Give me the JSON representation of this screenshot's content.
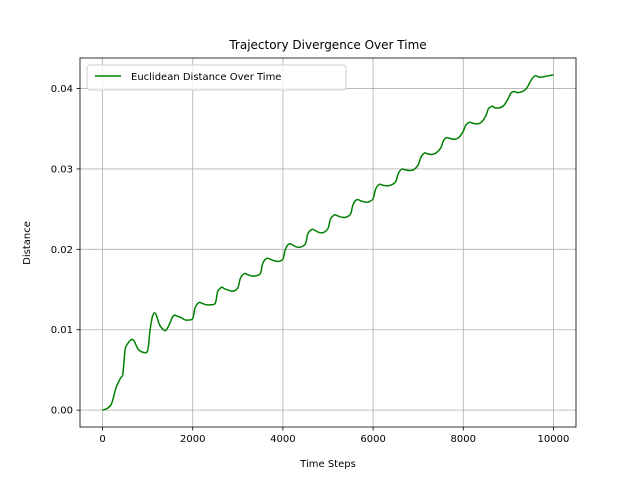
{
  "chart_data": {
    "type": "line",
    "title": "Trajectory Divergence Over Time",
    "xlabel": "Time Steps",
    "ylabel": "Distance",
    "xlim": [
      -500,
      10500
    ],
    "ylim": [
      -0.0021,
      0.0438
    ],
    "xticks": [
      0,
      2000,
      4000,
      6000,
      8000,
      10000
    ],
    "xtick_labels": [
      "0",
      "2000",
      "4000",
      "6000",
      "8000",
      "10000"
    ],
    "yticks": [
      0.0,
      0.01,
      0.02,
      0.03,
      0.04
    ],
    "ytick_labels": [
      "0.00",
      "0.01",
      "0.02",
      "0.03",
      "0.04"
    ],
    "grid": true,
    "legend_position": "top-left",
    "series": [
      {
        "name": "Euclidean Distance Over Time",
        "color": "#008000",
        "x": [
          0,
          100,
          200,
          300,
          400,
          450,
          500,
          550,
          600,
          650,
          700,
          750,
          800,
          900,
          1000,
          1050,
          1100,
          1150,
          1200,
          1250,
          1300,
          1400,
          1500,
          1550,
          1600,
          1650,
          1700,
          1750,
          1800,
          1850,
          1900,
          2000,
          2050,
          2100,
          2150,
          2200,
          2300,
          2400,
          2500,
          2550,
          2600,
          2650,
          2700,
          2800,
          2900,
          3000,
          3050,
          3100,
          3150,
          3200,
          3300,
          3400,
          3500,
          3550,
          3600,
          3650,
          3700,
          3800,
          3900,
          4000,
          4050,
          4100,
          4150,
          4200,
          4300,
          4400,
          4500,
          4550,
          4600,
          4650,
          4700,
          4800,
          4900,
          5000,
          5050,
          5100,
          5150,
          5200,
          5300,
          5400,
          5500,
          5550,
          5600,
          5650,
          5700,
          5800,
          5900,
          6000,
          6050,
          6100,
          6150,
          6200,
          6300,
          6400,
          6500,
          6550,
          6600,
          6650,
          6700,
          6800,
          6900,
          7000,
          7050,
          7100,
          7150,
          7200,
          7300,
          7400,
          7500,
          7550,
          7600,
          7650,
          7700,
          7800,
          7900,
          8000,
          8050,
          8100,
          8150,
          8200,
          8300,
          8400,
          8500,
          8550,
          8600,
          8650,
          8700,
          8800,
          8900,
          9000,
          9050,
          9100,
          9150,
          9200,
          9300,
          9400,
          9500,
          9550,
          9600,
          9650,
          9700,
          9800,
          9900,
          10000
        ],
        "y": [
          0.0,
          0.0002,
          0.0008,
          0.0028,
          0.004,
          0.0045,
          0.0075,
          0.0082,
          0.0086,
          0.0088,
          0.0086,
          0.008,
          0.0075,
          0.0072,
          0.0074,
          0.0098,
          0.0115,
          0.0121,
          0.0117,
          0.0108,
          0.0103,
          0.0099,
          0.0109,
          0.0116,
          0.0118,
          0.0117,
          0.0116,
          0.0115,
          0.0113,
          0.0112,
          0.0112,
          0.0114,
          0.0127,
          0.0132,
          0.0134,
          0.0133,
          0.0131,
          0.0131,
          0.0133,
          0.0147,
          0.0151,
          0.0153,
          0.0151,
          0.0149,
          0.0148,
          0.0152,
          0.0163,
          0.0168,
          0.017,
          0.0169,
          0.0167,
          0.0167,
          0.017,
          0.0182,
          0.0187,
          0.0189,
          0.0188,
          0.0186,
          0.0185,
          0.0188,
          0.0199,
          0.0205,
          0.0207,
          0.0206,
          0.0203,
          0.0203,
          0.0207,
          0.0219,
          0.0223,
          0.0225,
          0.0224,
          0.0221,
          0.0221,
          0.0226,
          0.0237,
          0.0241,
          0.0243,
          0.0242,
          0.024,
          0.024,
          0.0244,
          0.0255,
          0.026,
          0.0262,
          0.0261,
          0.0259,
          0.0259,
          0.0263,
          0.0274,
          0.0279,
          0.0281,
          0.028,
          0.0279,
          0.028,
          0.0284,
          0.0293,
          0.0298,
          0.03,
          0.0299,
          0.0298,
          0.0299,
          0.0305,
          0.0313,
          0.0318,
          0.032,
          0.0319,
          0.0318,
          0.032,
          0.0326,
          0.0334,
          0.0338,
          0.0339,
          0.0338,
          0.0337,
          0.0339,
          0.0347,
          0.0354,
          0.0357,
          0.0358,
          0.0357,
          0.0356,
          0.0358,
          0.0366,
          0.0374,
          0.0377,
          0.0378,
          0.0376,
          0.0376,
          0.0379,
          0.0388,
          0.0394,
          0.0396,
          0.0396,
          0.0395,
          0.0396,
          0.04,
          0.041,
          0.0414,
          0.0416,
          0.0415,
          0.0414,
          0.0415,
          0.0416,
          0.0417
        ]
      }
    ]
  }
}
